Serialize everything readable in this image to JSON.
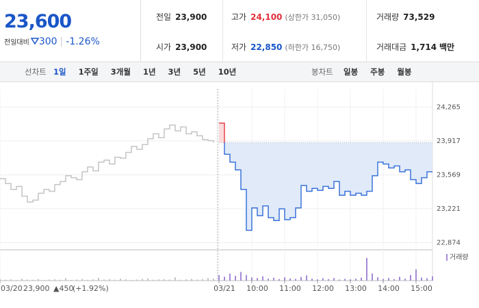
{
  "header": {
    "price": "23,600",
    "change_label": "전일대비",
    "change": "300",
    "rate": "-1.26%"
  },
  "stats": [
    {
      "label": "전일",
      "value": "23,900"
    },
    {
      "label": "고가",
      "value": "24,100",
      "note": "(상한가 31,050)"
    },
    {
      "label": "거래량",
      "value": "73,529"
    },
    {
      "label": "시가",
      "value": "23,900"
    },
    {
      "label": "저가",
      "value": "22,850",
      "note": "(하한가 16,750)"
    },
    {
      "label": "거래대금",
      "value": "1,714",
      "unit": "백만"
    }
  ],
  "tabs": {
    "line_label": "선차트",
    "line_periods": [
      "1일",
      "1주일",
      "3개월",
      "1년",
      "3년",
      "5년",
      "10년"
    ],
    "candle_label": "봉차트",
    "candle_periods": [
      "일봉",
      "주봉",
      "월봉"
    ]
  },
  "footer": {
    "close": "23,900",
    "change": "▲450",
    "rate": "(+1.92%)"
  },
  "chart_data": [
    {
      "type": "line",
      "categories": [
        "03/20",
        null,
        null,
        null,
        null,
        null,
        null,
        null,
        null,
        null,
        null,
        null,
        null,
        null,
        null,
        null,
        null,
        null,
        null,
        null,
        null,
        null,
        null,
        null,
        null,
        null,
        null,
        null,
        null,
        null,
        null,
        null,
        null,
        null,
        null,
        null,
        null,
        null,
        null,
        null,
        "03/21",
        null,
        null,
        null,
        null,
        null,
        "10:00",
        null,
        null,
        null,
        null,
        null,
        "11:00",
        null,
        null,
        null,
        null,
        null,
        "12:00",
        null,
        null,
        null,
        null,
        null,
        "13:00",
        null,
        null,
        null,
        null,
        null,
        "14:00",
        null,
        null,
        null,
        null,
        null,
        "15:00",
        null,
        null,
        null
      ],
      "series": [
        {
          "color": "#c4c4c4",
          "values": [
            23530,
            23480,
            23420,
            23450,
            23350,
            23290,
            23310,
            23380,
            23420,
            23400,
            23470,
            23500,
            23560,
            23540,
            23520,
            23600,
            23650,
            23610,
            23700,
            23720,
            23680,
            23750,
            23740,
            23800,
            23860,
            23830,
            23880,
            23940,
            23990,
            23950,
            24040,
            24080,
            24020,
            24060,
            23990,
            24010,
            23970,
            23930,
            23920,
            23900,
            null,
            null,
            null,
            null,
            null,
            null,
            null,
            null,
            null,
            null,
            null,
            null,
            null,
            null,
            null,
            null,
            null,
            null,
            null,
            null,
            null,
            null,
            null,
            null,
            null,
            null,
            null,
            null,
            null,
            null,
            null,
            null,
            null,
            null,
            null,
            null,
            null,
            null,
            null,
            null
          ]
        },
        {
          "color": "#3b73d9",
          "up_color": "#e8404a",
          "fill": "#dde8f8",
          "values": [
            null,
            null,
            null,
            null,
            null,
            null,
            null,
            null,
            null,
            null,
            null,
            null,
            null,
            null,
            null,
            null,
            null,
            null,
            null,
            null,
            null,
            null,
            null,
            null,
            null,
            null,
            null,
            null,
            null,
            null,
            null,
            null,
            null,
            null,
            null,
            null,
            null,
            null,
            null,
            null,
            24100,
            23780,
            23700,
            23620,
            23420,
            23000,
            23230,
            23150,
            23250,
            23130,
            23100,
            23220,
            23110,
            23130,
            23230,
            23460,
            23400,
            23430,
            23410,
            23450,
            23430,
            23500,
            23360,
            23400,
            23360,
            23380,
            23360,
            23400,
            23560,
            23700,
            23680,
            23640,
            23660,
            23600,
            23620,
            23520,
            23480,
            23540,
            23600,
            23600
          ]
        }
      ],
      "reference": 23900,
      "ylim": [
        22800,
        24450
      ],
      "yticks": [
        {
          "value": 22874,
          "label": "22,874"
        },
        {
          "value": 23221,
          "label": "23,221"
        },
        {
          "value": 23569,
          "label": "23,569"
        },
        {
          "value": 23917,
          "label": "23,917"
        },
        {
          "value": 24265,
          "label": "24,265"
        }
      ],
      "grid": true
    },
    {
      "type": "bar",
      "series": [
        {
          "color": "#c4c4c4",
          "values": [
            800,
            400,
            600,
            300,
            900,
            500,
            400,
            700,
            300,
            500,
            600,
            400,
            1100,
            300,
            500,
            800,
            400,
            600,
            1300,
            500,
            700,
            400,
            900,
            600,
            300,
            500,
            800,
            1000,
            400,
            600,
            700,
            500,
            1500,
            400,
            600,
            800,
            500,
            700,
            1200,
            900,
            null,
            null,
            null,
            null,
            null,
            null,
            null,
            null,
            null,
            null,
            null,
            null,
            null,
            null,
            null,
            null,
            null,
            null,
            null,
            null,
            null,
            null,
            null,
            null,
            null,
            null,
            null,
            null,
            null,
            null,
            null,
            null,
            null,
            null,
            null,
            null,
            null,
            null,
            null,
            null
          ]
        },
        {
          "name": "거래량",
          "color": "#a48ad6",
          "values": [
            null,
            null,
            null,
            null,
            null,
            null,
            null,
            null,
            null,
            null,
            null,
            null,
            null,
            null,
            null,
            null,
            null,
            null,
            null,
            null,
            null,
            null,
            null,
            null,
            null,
            null,
            null,
            null,
            null,
            null,
            null,
            null,
            null,
            null,
            null,
            null,
            null,
            null,
            null,
            null,
            2500,
            1800,
            3200,
            2200,
            4000,
            2600,
            1500,
            1200,
            2000,
            900,
            1300,
            700,
            1500,
            1000,
            800,
            1700,
            2400,
            900,
            600,
            1100,
            700,
            1200,
            500,
            800,
            600,
            900,
            1400,
            10500,
            3300,
            1600,
            800,
            1200,
            700,
            1800,
            900,
            2600,
            5200,
            1400,
            1100,
            2000
          ]
        }
      ],
      "ylim": [
        0,
        12000
      ]
    }
  ]
}
